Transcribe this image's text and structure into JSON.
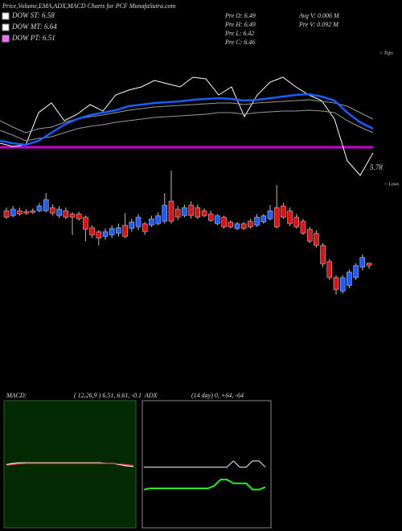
{
  "header": {
    "title": "Price,Volume,EMA,ADX,MACD Charts for PCF MunafaSutra.com",
    "legend": [
      {
        "name": "DOW ST: 6.58",
        "color": "#ffffff"
      },
      {
        "name": "DOW MT: 6.64",
        "color": "#ffffff"
      },
      {
        "name": "DOW PT: 6.51",
        "color": "#ff66ff"
      }
    ],
    "stats": [
      "Pre O: 6.49",
      "Pre H: 6.49",
      "Pre L: 6.42",
      "Pre C: 6.46",
      "Avg V: 0.006 M",
      "Pre V: 0.092 M"
    ]
  },
  "price_panel": {
    "type": "line",
    "ylim": [
      0,
      180
    ],
    "series": [
      {
        "name": "white",
        "color": "#ffffff",
        "values": [
          52,
          48,
          50,
          90,
          102,
          80,
          88,
          100,
          92,
          112,
          118,
          122,
          130,
          126,
          122,
          134,
          132,
          112,
          122,
          85,
          112,
          128,
          134,
          122,
          112,
          105,
          82,
          30,
          12,
          40
        ]
      },
      {
        "name": "upper",
        "color": "#999999",
        "values": [
          80,
          72,
          65,
          70,
          72,
          78,
          82,
          85,
          87,
          90,
          93,
          95,
          97,
          98,
          99,
          100,
          101,
          102,
          102,
          100,
          102,
          103,
          104,
          105,
          106,
          104,
          102,
          98,
          90,
          82
        ]
      },
      {
        "name": "lower",
        "color": "#999999",
        "values": [
          68,
          62,
          55,
          58,
          60,
          65,
          70,
          73,
          75,
          78,
          80,
          82,
          84,
          85,
          86,
          87,
          88,
          90,
          90,
          88,
          90,
          91,
          92,
          92,
          93,
          92,
          90,
          80,
          72,
          65
        ]
      },
      {
        "name": "blue",
        "color": "#1a5cff",
        "values": [
          55,
          52,
          50,
          55,
          65,
          75,
          82,
          87,
          90,
          93,
          98,
          100,
          102,
          103,
          104,
          106,
          107,
          108,
          107,
          105,
          106,
          108,
          110,
          112,
          113,
          110,
          105,
          90,
          78,
          70
        ]
      }
    ],
    "level": {
      "value": 47,
      "color": "#cc00cc"
    },
    "annotation": "5.78",
    "tops_label": "< Tops",
    "lows_label": "< Lows"
  },
  "candle_panel": {
    "type": "candlestick",
    "ylim": [
      5.96,
      7.46
    ],
    "up_color": "#1a5cff",
    "down_color": "#e01010",
    "open": [
      7.14,
      7.08,
      7.14,
      7.13,
      7.14,
      7.14,
      7.14,
      7.18,
      7.08,
      7.14,
      7.1,
      7.1,
      7.06,
      6.93,
      6.88,
      6.82,
      6.84,
      6.86,
      6.96,
      6.92,
      6.94,
      6.98,
      6.96,
      6.98,
      7.01,
      7.26,
      7.16,
      7.08,
      7.21,
      7.18,
      7.14,
      7.1,
      6.98,
      7.06,
      7.0,
      6.92,
      6.98,
      7.01,
      6.96,
      7.0,
      7.04,
      7.18,
      7.2,
      7.14,
      7.06,
      7.01,
      6.91,
      6.86,
      6.71,
      6.51,
      6.31,
      6.14,
      6.21,
      6.31,
      6.44,
      6.49
    ],
    "high": [
      7.18,
      7.2,
      7.18,
      7.16,
      7.17,
      7.24,
      7.36,
      7.22,
      7.2,
      7.18,
      7.12,
      7.13,
      7.08,
      6.96,
      6.9,
      6.92,
      6.96,
      6.98,
      7.11,
      7.04,
      7.1,
      7.0,
      7.08,
      7.12,
      7.36,
      7.64,
      7.2,
      7.22,
      7.26,
      7.22,
      7.17,
      7.14,
      7.1,
      7.08,
      7.02,
      7.0,
      7.0,
      7.04,
      7.1,
      7.1,
      7.21,
      7.46,
      7.24,
      7.18,
      7.1,
      7.04,
      6.94,
      6.9,
      6.74,
      6.54,
      6.34,
      6.34,
      6.41,
      6.49,
      6.6,
      6.49
    ],
    "low": [
      7.04,
      7.06,
      7.08,
      7.09,
      7.1,
      7.12,
      7.12,
      7.08,
      7.05,
      7.04,
      6.84,
      7.02,
      6.76,
      6.8,
      6.71,
      6.78,
      6.8,
      6.82,
      6.8,
      6.88,
      6.9,
      6.84,
      6.94,
      6.96,
      6.98,
      6.98,
      7.02,
      7.06,
      7.04,
      7.04,
      7.06,
      7.0,
      6.96,
      6.92,
      6.92,
      6.9,
      6.9,
      6.92,
      6.94,
      6.98,
      7.02,
      6.92,
      7.04,
      6.95,
      6.92,
      6.84,
      6.74,
      6.68,
      6.44,
      6.28,
      6.1,
      6.11,
      6.18,
      6.28,
      6.4,
      6.42
    ],
    "close": [
      7.06,
      7.16,
      7.1,
      7.11,
      7.12,
      7.2,
      7.28,
      7.11,
      7.16,
      7.06,
      7.06,
      7.04,
      6.91,
      6.84,
      6.8,
      6.88,
      6.92,
      6.93,
      6.82,
      7.0,
      7.06,
      6.88,
      7.04,
      7.08,
      7.21,
      7.01,
      7.06,
      7.18,
      7.08,
      7.06,
      7.08,
      7.02,
      7.08,
      6.94,
      6.94,
      6.98,
      6.92,
      6.94,
      7.06,
      7.08,
      7.14,
      6.94,
      7.06,
      6.98,
      6.94,
      6.86,
      6.76,
      6.71,
      6.48,
      6.31,
      6.16,
      6.31,
      6.38,
      6.46,
      6.56,
      6.46
    ]
  },
  "macd_panel": {
    "type": "line",
    "label": "MACD:",
    "params": "( 12,26,9 ) 6.51, 6.61, -0.1",
    "ylim": [
      -1,
      1
    ],
    "series": [
      {
        "name": "macd",
        "color": "#ffffff",
        "values": [
          0.0,
          0.02,
          0.03,
          0.03,
          0.03,
          0.03,
          0.03,
          0.03,
          0.03,
          0.03,
          0.03,
          0.03,
          0.03,
          0.03,
          0.03,
          0.02,
          0.02,
          0.0,
          -0.02,
          -0.03
        ]
      },
      {
        "name": "signal",
        "color": "#e03030",
        "values": [
          -0.01,
          0.0,
          0.01,
          0.02,
          0.02,
          0.02,
          0.02,
          0.02,
          0.02,
          0.02,
          0.02,
          0.02,
          0.02,
          0.02,
          0.02,
          0.02,
          0.02,
          0.01,
          0.0,
          -0.01
        ]
      }
    ]
  },
  "adx_panel": {
    "type": "line",
    "label": "ADX",
    "params": "(14 day) 0, +64, -64",
    "ylim": [
      0,
      100
    ],
    "series": [
      {
        "name": "adx",
        "color": "#cccccc",
        "values": [
          48,
          48,
          48,
          48,
          48,
          48,
          48,
          48,
          48,
          48,
          48,
          48,
          48,
          48,
          53,
          48,
          48,
          53,
          53,
          48
        ]
      },
      {
        "name": "di",
        "color": "#22ee22",
        "values": [
          30,
          31,
          31,
          31,
          31,
          31,
          31,
          31,
          31,
          31,
          31,
          33,
          38,
          38,
          35,
          35,
          35,
          30,
          30,
          32
        ]
      }
    ]
  }
}
